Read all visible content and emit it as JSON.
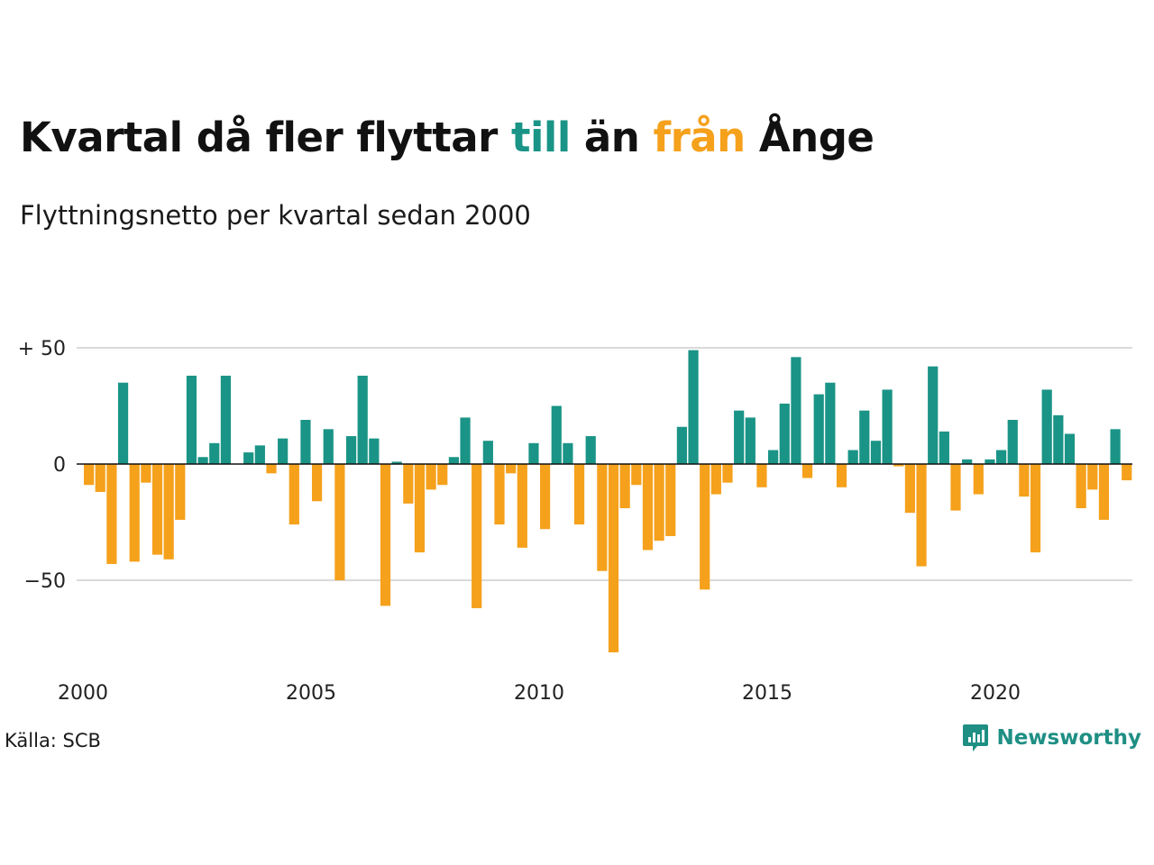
{
  "header": {
    "title_parts": [
      {
        "text": "Kvartal då fler flyttar ",
        "color": "#111111"
      },
      {
        "text": "till",
        "color": "#1a9486"
      },
      {
        "text": " än ",
        "color": "#111111"
      },
      {
        "text": "från",
        "color": "#f5a11c"
      },
      {
        "text": " Ånge",
        "color": "#111111"
      }
    ],
    "subtitle": "Flyttningsnetto per kvartal sedan 2000"
  },
  "footer": {
    "source": "Källa: SCB",
    "brand": "Newsworthy",
    "brand_icon": "newsworthy-logo-icon"
  },
  "colors": {
    "positive": "#1a9486",
    "negative": "#f5a11c",
    "grid": "#d9d9d9",
    "zero_line": "#111111"
  },
  "chart_data": {
    "type": "bar",
    "title": "Kvartal då fler flyttar till än från Ånge",
    "subtitle": "Flyttningsnetto per kvartal sedan 2000",
    "xlabel": "",
    "ylabel": "",
    "ylim": [
      -85,
      55
    ],
    "y_ticks": [
      {
        "value": 50,
        "label": "+ 50"
      },
      {
        "value": 0,
        "label": "0"
      },
      {
        "value": -50,
        "label": "−50"
      }
    ],
    "x_ticks": [
      "2000",
      "2005",
      "2010",
      "2015",
      "2020"
    ],
    "grid": true,
    "start_year": 2000,
    "quarters_per_year": 4,
    "values": [
      -9,
      -12,
      -43,
      35,
      -42,
      -8,
      -39,
      -41,
      -24,
      38,
      3,
      9,
      38,
      0,
      5,
      8,
      -4,
      11,
      -26,
      19,
      -16,
      15,
      -50,
      12,
      38,
      11,
      -61,
      1,
      -17,
      -38,
      -11,
      -9,
      3,
      20,
      -62,
      10,
      -26,
      -4,
      -36,
      9,
      -28,
      25,
      9,
      -26,
      12,
      -46,
      -81,
      -19,
      -9,
      -37,
      -33,
      -31,
      16,
      49,
      -54,
      -13,
      -8,
      23,
      20,
      -10,
      6,
      26,
      46,
      -6,
      30,
      35,
      -10,
      6,
      23,
      10,
      32,
      -1,
      -21,
      -44,
      42,
      14,
      -20,
      2,
      -13,
      2,
      6,
      19,
      -14,
      -38,
      32,
      21,
      13,
      -19,
      -11,
      -24,
      15,
      -7
    ]
  }
}
